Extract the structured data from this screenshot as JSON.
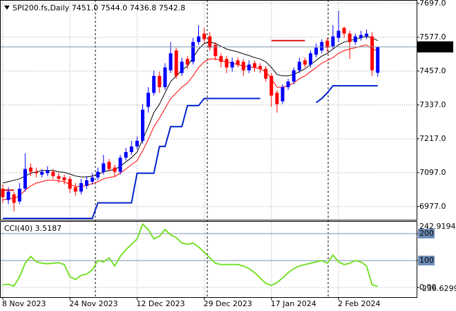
{
  "chart_data": [
    {
      "type": "candlestick",
      "title": "SPI200.fs,Daily  7451.0 7544.0 7436.8 7542.8",
      "categories": [
        "8 Nov 2023",
        null,
        null,
        null,
        null,
        null,
        null,
        null,
        null,
        null,
        null,
        null,
        "24 Nov 2023",
        null,
        null,
        null,
        null,
        null,
        null,
        null,
        null,
        null,
        null,
        null,
        "12 Dec 2023",
        null,
        null,
        null,
        null,
        null,
        null,
        null,
        null,
        null,
        null,
        null,
        "29 Dec 2023",
        null,
        null,
        null,
        null,
        null,
        null,
        null,
        null,
        null,
        null,
        null,
        "17 Jan 2024",
        null,
        null,
        null,
        null,
        null,
        null,
        null,
        null,
        null,
        null,
        null,
        "2 Feb 2024",
        null,
        null,
        null,
        null,
        null,
        null,
        null
      ],
      "open": [
        7040,
        7000,
        7020,
        6995,
        7040,
        7115,
        7100,
        7090,
        7095,
        7100,
        7085,
        7080,
        7075,
        7045,
        7030,
        7050,
        7065,
        7080,
        7100,
        7135,
        7115,
        7100,
        7150,
        7170,
        7190,
        7210,
        7330,
        7380,
        7440,
        7400,
        7460,
        7530,
        7450,
        7500,
        7490,
        7560,
        7590,
        7580,
        7550,
        7510,
        7500,
        7470,
        7495,
        7490,
        7460,
        7485,
        7475,
        7465,
        7440,
        7380,
        7350,
        7400,
        7420,
        7460,
        7495,
        7480,
        7515,
        7530,
        7565,
        7545,
        7575,
        7610,
        7590,
        7560,
        7575,
        7580,
        7580,
        7451.0
      ],
      "high": [
        7055,
        7045,
        7030,
        7060,
        7165,
        7130,
        7115,
        7110,
        7120,
        7110,
        7095,
        7090,
        7085,
        7060,
        7075,
        7085,
        7095,
        7115,
        7160,
        7145,
        7125,
        7160,
        7185,
        7210,
        7225,
        7340,
        7400,
        7460,
        7455,
        7485,
        7560,
        7540,
        7505,
        7510,
        7575,
        7620,
        7610,
        7595,
        7560,
        7520,
        7510,
        7505,
        7505,
        7500,
        7495,
        7495,
        7485,
        7475,
        7450,
        7390,
        7410,
        7430,
        7470,
        7505,
        7505,
        7530,
        7555,
        7570,
        7575,
        7620,
        7670,
        7615,
        7600,
        7590,
        7600,
        7605,
        7595,
        7544.0
      ],
      "low": [
        6990,
        6985,
        6960,
        6985,
        7030,
        7085,
        7080,
        7080,
        7085,
        7075,
        7060,
        7055,
        7025,
        7015,
        7020,
        7040,
        7055,
        7070,
        7090,
        7100,
        7085,
        7090,
        7140,
        7160,
        7180,
        7200,
        7310,
        7370,
        7380,
        7390,
        7450,
        7430,
        7440,
        7465,
        7480,
        7550,
        7555,
        7530,
        7495,
        7470,
        7450,
        7455,
        7470,
        7440,
        7450,
        7455,
        7450,
        7420,
        7330,
        7310,
        7340,
        7390,
        7410,
        7450,
        7470,
        7470,
        7505,
        7520,
        7525,
        7535,
        7560,
        7575,
        7500,
        7550,
        7565,
        7570,
        7440,
        7436.8
      ],
      "close": [
        7010,
        7030,
        6990,
        7040,
        7110,
        7100,
        7095,
        7100,
        7105,
        7085,
        7075,
        7070,
        7040,
        7030,
        7060,
        7070,
        7080,
        7100,
        7130,
        7110,
        7100,
        7150,
        7170,
        7190,
        7210,
        7320,
        7380,
        7440,
        7400,
        7470,
        7520,
        7440,
        7490,
        7480,
        7560,
        7580,
        7570,
        7540,
        7510,
        7490,
        7470,
        7490,
        7480,
        7460,
        7480,
        7470,
        7465,
        7430,
        7370,
        7340,
        7400,
        7420,
        7460,
        7490,
        7480,
        7520,
        7540,
        7560,
        7540,
        7580,
        7600,
        7590,
        7560,
        7580,
        7585,
        7590,
        7460,
        7542.8
      ],
      "up_color": "#0000ff",
      "down_color": "#ff0000",
      "series": [
        {
          "color": "#000000",
          "values": [
            7060,
            7065,
            7070,
            7075,
            7085,
            7095,
            7100,
            7105,
            7105,
            7105,
            7100,
            7098,
            7092,
            7085,
            7082,
            7082,
            7085,
            7090,
            7100,
            7105,
            7108,
            7120,
            7135,
            7150,
            7170,
            7215,
            7260,
            7310,
            7340,
            7380,
            7420,
            7440,
            7460,
            7475,
            7505,
            7535,
            7555,
            7560,
            7555,
            7545,
            7535,
            7530,
            7525,
            7518,
            7512,
            7505,
            7500,
            7490,
            7470,
            7445,
            7440,
            7440,
            7445,
            7455,
            7465,
            7480,
            7495,
            7510,
            7520,
            7535,
            7550,
            7560,
            7565,
            7570,
            7575,
            7580,
            7575,
            7565
          ]
        },
        {
          "color": "#ff0000",
          "values": [
            7000,
            7005,
            7005,
            7015,
            7035,
            7050,
            7060,
            7065,
            7070,
            7070,
            7068,
            7065,
            7055,
            7048,
            7048,
            7052,
            7058,
            7065,
            7075,
            7080,
            7083,
            7095,
            7110,
            7125,
            7140,
            7175,
            7215,
            7260,
            7290,
            7325,
            7360,
            7380,
            7400,
            7415,
            7440,
            7470,
            7490,
            7500,
            7500,
            7495,
            7488,
            7485,
            7480,
            7475,
            7472,
            7470,
            7465,
            7455,
            7430,
            7400,
            7400,
            7405,
            7415,
            7430,
            7440,
            7455,
            7470,
            7485,
            7495,
            7505,
            7520,
            7530,
            7535,
            7540,
            7545,
            7550,
            7535,
            7530
          ]
        },
        {
          "color": "#0022cc",
          "width": 2,
          "values": [
            6935,
            6935,
            6935,
            6935,
            6935,
            6935,
            6935,
            6935,
            6935,
            6935,
            6935,
            6935,
            6935,
            6935,
            6935,
            6935,
            6935,
            6990,
            6990,
            6990,
            6990,
            6990,
            6990,
            6990,
            7095,
            7095,
            7095,
            7095,
            7190,
            7190,
            7260,
            7260,
            7260,
            7335,
            7335,
            7335,
            7360,
            7360,
            7360,
            7360,
            7360,
            7360,
            7360,
            7360,
            7360,
            7360,
            7360,
            null,
            null,
            null,
            null,
            null,
            null,
            null,
            null,
            null,
            7345,
            7360,
            7380,
            7405,
            7405,
            7405,
            7405,
            7405,
            7405,
            7405,
            7405,
            7405
          ]
        },
        {
          "color": "#dd1111",
          "width": 2,
          "values": [
            7035,
            7035,
            7035,
            null,
            null,
            null,
            null,
            null,
            null,
            null,
            null,
            null,
            null,
            null,
            null,
            null,
            null,
            null,
            null,
            null,
            null,
            null,
            null,
            null,
            null,
            null,
            null,
            null,
            null,
            null,
            null,
            null,
            null,
            null,
            null,
            null,
            null,
            null,
            null,
            null,
            null,
            null,
            null,
            null,
            null,
            null,
            null,
            null,
            7565,
            7565,
            7565,
            7565,
            7565,
            7565,
            7565,
            null,
            null,
            null,
            null,
            null,
            null,
            null,
            null,
            null,
            null,
            null,
            null,
            null
          ]
        }
      ],
      "last_price": {
        "value": 7542.8,
        "label": "7542.8"
      },
      "ylim": [
        6930,
        7709
      ],
      "yticks": [
        {
          "value": 6977,
          "label": "6977.0"
        },
        {
          "value": 7097,
          "label": "7097.0"
        },
        {
          "value": 7217,
          "label": "7217.0"
        },
        {
          "value": 7337,
          "label": "7337.0"
        },
        {
          "value": 7457,
          "label": "7457.0"
        },
        {
          "value": 7577,
          "label": "7577.0"
        },
        {
          "value": 7697,
          "label": "7697.0"
        }
      ],
      "grid": true
    },
    {
      "type": "line",
      "title": "CCI(40) 3.5187",
      "color": "#77e02a",
      "values": [
        10,
        12,
        5,
        40,
        90,
        115,
        95,
        90,
        88,
        90,
        92,
        85,
        40,
        30,
        45,
        50,
        65,
        100,
        95,
        110,
        80,
        115,
        140,
        160,
        180,
        235,
        215,
        180,
        190,
        215,
        195,
        185,
        165,
        160,
        165,
        150,
        130,
        110,
        90,
        85,
        85,
        85,
        85,
        80,
        70,
        55,
        35,
        15,
        8,
        18,
        35,
        55,
        70,
        80,
        85,
        90,
        95,
        100,
        90,
        120,
        95,
        85,
        90,
        100,
        95,
        80,
        10,
        3.5187
      ],
      "ylim": [
        -36,
        246
      ],
      "yticks": [
        200,
        100,
        {
          "value": 0,
          "label": "0.00"
        }
      ],
      "levels": [
        200,
        100
      ],
      "range_labels": [
        "242.9194",
        "-236.6299"
      ],
      "grid": true
    }
  ]
}
